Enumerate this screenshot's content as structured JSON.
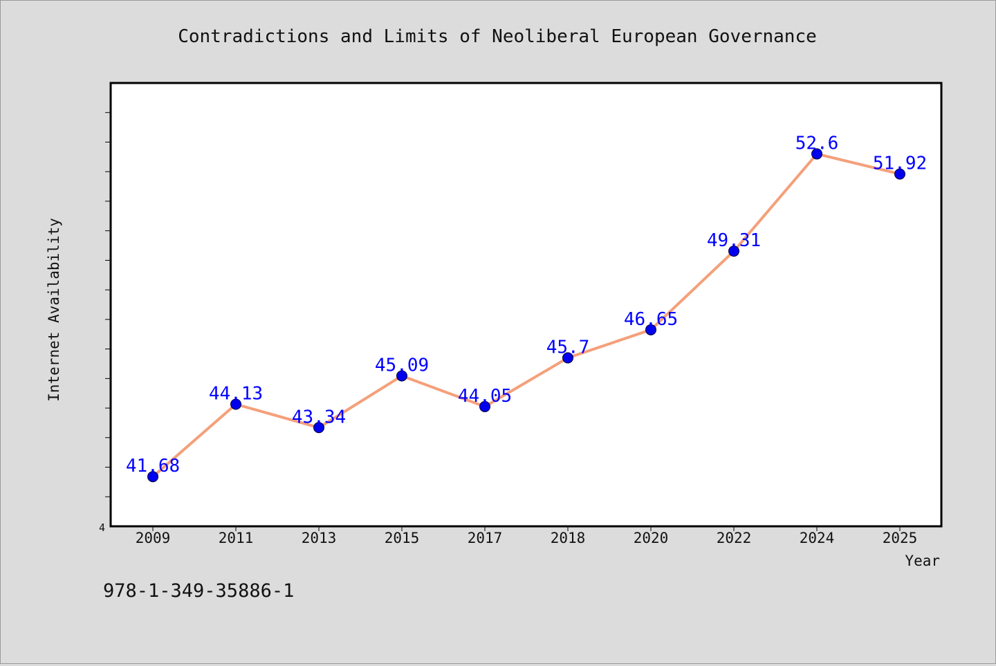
{
  "chart_data": {
    "type": "line",
    "title": "Contradictions and Limits of Neoliberal European Governance",
    "xlabel": "Year",
    "ylabel": "Internet Availability",
    "categories": [
      "2009",
      "2011",
      "2013",
      "2015",
      "2017",
      "2018",
      "2020",
      "2022",
      "2024",
      "2025"
    ],
    "series": [
      {
        "values": [
          41.68,
          44.13,
          43.34,
          45.09,
          44.05,
          45.7,
          46.65,
          49.31,
          52.6,
          51.92
        ],
        "labels": [
          "41.68",
          "44.13",
          "43.34",
          "45.09",
          "44.05",
          "45.7",
          "46.65",
          "49.31",
          "52.6",
          "51.92"
        ],
        "line_color": "#f4a07a",
        "marker_color": "#0000ee",
        "label_color": "#0000ff"
      }
    ],
    "ylim": [
      40,
      55
    ],
    "y_tick_labels": [
      "4"
    ],
    "legend": "none",
    "grid": false
  },
  "footer": {
    "isbn": "978-1-349-35886-1"
  },
  "colors": {
    "background": "#dcdcdc",
    "plot_area": "#ffffff"
  }
}
